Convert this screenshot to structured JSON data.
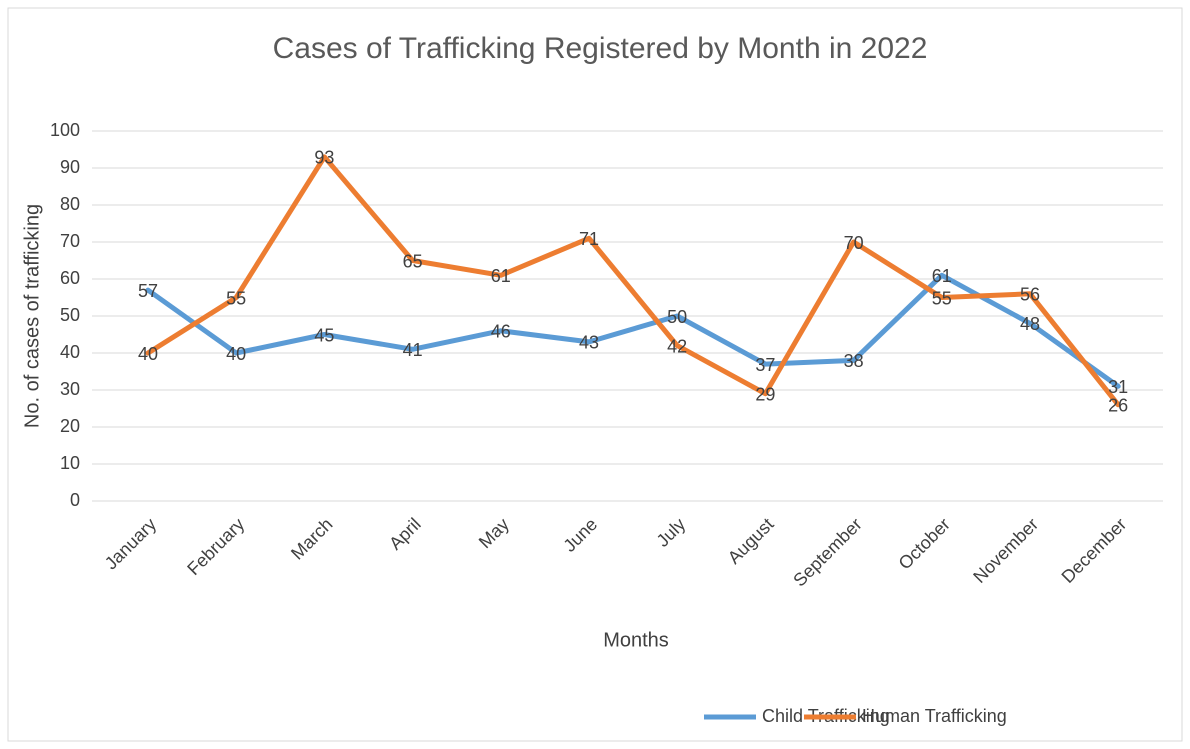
{
  "chart_data": {
    "type": "line",
    "title": "Cases of Trafficking Registered by Month in 2022",
    "x_label": "Months",
    "y_label": "No. of cases of trafficking",
    "categories": [
      "January",
      "February",
      "March",
      "April",
      "May",
      "June",
      "July",
      "August",
      "September",
      "October",
      "November",
      "December"
    ],
    "series": [
      {
        "name": "Child Trafficking",
        "color": "#5b9bd5",
        "values": [
          57,
          40,
          45,
          41,
          46,
          43,
          50,
          37,
          38,
          61,
          48,
          31
        ]
      },
      {
        "name": "Human Trafficking",
        "color": "#ed7d31",
        "values": [
          40,
          55,
          93,
          65,
          61,
          71,
          42,
          29,
          70,
          55,
          56,
          26
        ]
      }
    ],
    "ylim": [
      0,
      100
    ],
    "yticks": [
      0,
      10,
      20,
      30,
      40,
      50,
      60,
      70,
      80,
      90,
      100
    ],
    "grid": true,
    "legend": "bottom"
  }
}
